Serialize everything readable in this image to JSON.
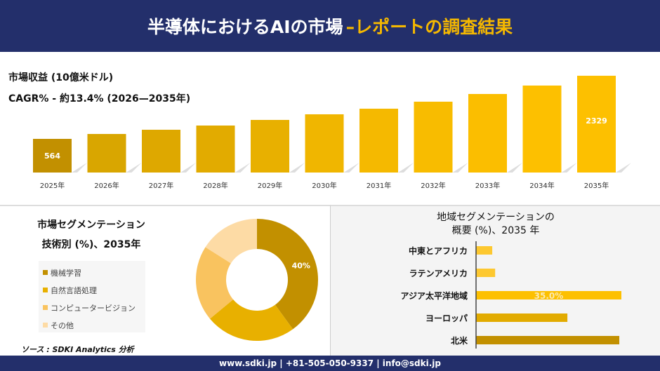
{
  "header": {
    "title": "半導体におけるAIの市場",
    "title_accent": "–レポートの調査結果"
  },
  "colors": {
    "navy": "#232f6b",
    "gold_dark": "#c29000",
    "gold": "#e2ab00",
    "gold_bright": "#fdc000",
    "light1": "#f9c35f",
    "light2": "#fddba5"
  },
  "chart_data": [
    {
      "type": "bar",
      "title": "市場収益 (10億米ドル)",
      "subtitle": "CAGR% - 約13.4% (2026—2035年)",
      "categories": [
        "2025年",
        "2026年",
        "2027年",
        "2028年",
        "2029年",
        "2030年",
        "2031年",
        "2032年",
        "2033年",
        "2034年",
        "2035年"
      ],
      "values": [
        564,
        701,
        819,
        937,
        1094,
        1251,
        1408,
        1604,
        1819,
        2055,
        2329
      ],
      "data_labels": {
        "0": "564",
        "10": "2329"
      },
      "grid": false
    },
    {
      "type": "pie",
      "title": "市場セグメンテーション",
      "subtitle": "技術別 (%)、2035年",
      "categories": [
        "機械学習",
        "自然言語処理",
        "コンピュータービジョン",
        "その他"
      ],
      "values": [
        40,
        24,
        20,
        16
      ],
      "colors": [
        "#c29000",
        "#e8b000",
        "#f9c35f",
        "#fddba5"
      ],
      "data_labels": {
        "0": "40%"
      },
      "legend": "left"
    },
    {
      "type": "bar",
      "orientation": "horizontal",
      "title": "地域セグメンテーションの",
      "subtitle": "概要 (%)、2035 年",
      "categories": [
        "中東とアフリカ",
        "ラテンアメリカ",
        "アジア太平洋地域",
        "ヨーロッパ",
        "北米"
      ],
      "values": [
        3.9,
        4.6,
        35.0,
        22.0,
        34.5
      ],
      "colors": [
        "#fdc830",
        "#fdc830",
        "#fdc000",
        "#e2ab00",
        "#c29000"
      ],
      "data_labels": {
        "2": "35.0%"
      }
    }
  ],
  "source": "ソース : SDKI Analytics 分析",
  "footer": "www.sdki.jp | +81-505-050-9337 | info@sdki.jp"
}
